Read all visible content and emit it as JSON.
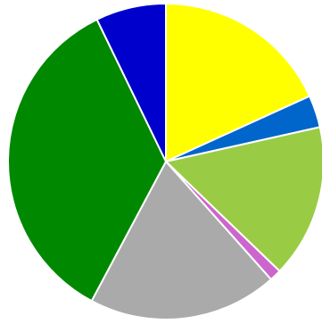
{
  "chart_data": {
    "type": "pie",
    "start_angle_deg": 0,
    "direction": "clockwise",
    "slices": [
      {
        "value": 18.2,
        "color": "#ffff00"
      },
      {
        "value": 3.3,
        "color": "#0066cc"
      },
      {
        "value": 15.7,
        "color": "#99cc44"
      },
      {
        "value": 1.2,
        "color": "#cc66cc"
      },
      {
        "value": 19.4,
        "color": "#aaaaaa"
      },
      {
        "value": 35.0,
        "color": "#008800"
      },
      {
        "value": 7.2,
        "color": "#0000cc"
      }
    ],
    "slice_border_color": "#ffffff"
  }
}
